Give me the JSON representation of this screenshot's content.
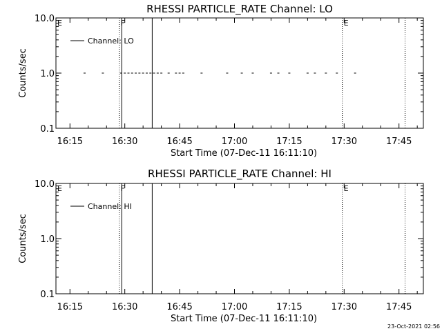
{
  "footer": {
    "timestamp": "23-Oct-2021 02:56"
  },
  "chart_data": [
    {
      "type": "scatter",
      "title": "RHESSI PARTICLE_RATE Channel: LO",
      "xlabel": "Start Time (07-Dec-11 16:11:10)",
      "ylabel": "Counts/sec",
      "yscale": "log",
      "ylim": [
        0.1,
        10.0
      ],
      "xlim": [
        "16:11:10",
        "17:51:40"
      ],
      "xticks": [
        "16:15",
        "16:30",
        "16:45",
        "17:00",
        "17:15",
        "17:30",
        "17:45"
      ],
      "yticks": [
        "0.1",
        "1.0",
        "10.0"
      ],
      "legend": {
        "location": "upper-left",
        "entries": [
          "Channel: LO"
        ]
      },
      "series": [
        {
          "name": "Channel: LO",
          "x": [
            "16:19",
            "16:24",
            "16:29",
            "16:30",
            "16:31",
            "16:32",
            "16:33",
            "16:34",
            "16:35",
            "16:36",
            "16:37",
            "16:38",
            "16:39",
            "16:40",
            "16:42",
            "16:44",
            "16:45",
            "16:46",
            "16:51",
            "16:58",
            "17:02",
            "17:05",
            "17:10",
            "17:12",
            "17:15",
            "17:20",
            "17:22",
            "17:25",
            "17:28",
            "17:33"
          ],
          "y": [
            1.0,
            1.0,
            1.0,
            1.0,
            1.0,
            1.0,
            1.0,
            1.0,
            1.0,
            1.0,
            1.0,
            1.0,
            1.0,
            1.0,
            1.0,
            1.0,
            1.0,
            1.0,
            1.0,
            1.0,
            1.0,
            1.0,
            1.0,
            1.0,
            1.0,
            1.0,
            1.0,
            1.0,
            1.0,
            1.0
          ]
        }
      ],
      "markers": [
        {
          "time": "16:28:30",
          "style": "dotted",
          "label": "F"
        },
        {
          "time": "16:29:10",
          "style": "solid",
          "label": ""
        },
        {
          "time": "16:37:30",
          "style": "solid",
          "label": ""
        },
        {
          "time": "17:29:30",
          "style": "dotted",
          "label": "E"
        },
        {
          "time": "17:46:40",
          "style": "dotted",
          "label": ""
        }
      ],
      "edge_label": "E"
    },
    {
      "type": "scatter",
      "title": "RHESSI PARTICLE_RATE Channel: HI",
      "xlabel": "Start Time (07-Dec-11 16:11:10)",
      "ylabel": "Counts/sec",
      "yscale": "log",
      "ylim": [
        0.1,
        10.0
      ],
      "xlim": [
        "16:11:10",
        "17:51:40"
      ],
      "xticks": [
        "16:15",
        "16:30",
        "16:45",
        "17:00",
        "17:15",
        "17:30",
        "17:45"
      ],
      "yticks": [
        "0.1",
        "1.0",
        "10.0"
      ],
      "legend": {
        "location": "upper-left",
        "entries": [
          "Channel: HI"
        ]
      },
      "series": [
        {
          "name": "Channel: HI",
          "x": [],
          "y": []
        }
      ],
      "markers": [
        {
          "time": "16:28:30",
          "style": "dotted",
          "label": "F"
        },
        {
          "time": "16:29:10",
          "style": "solid",
          "label": ""
        },
        {
          "time": "16:37:30",
          "style": "solid",
          "label": ""
        },
        {
          "time": "17:29:30",
          "style": "dotted",
          "label": "E"
        },
        {
          "time": "17:46:40",
          "style": "dotted",
          "label": ""
        }
      ],
      "edge_label": "E"
    }
  ]
}
